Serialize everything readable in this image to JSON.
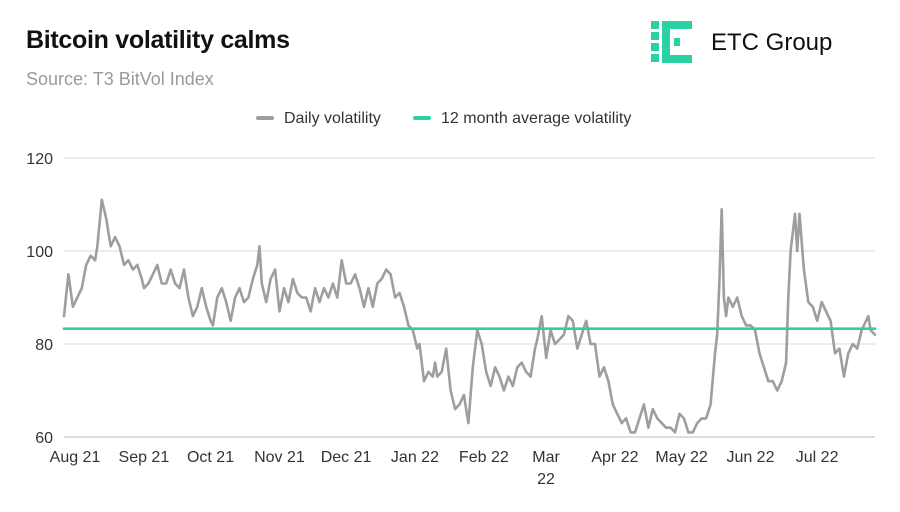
{
  "header": {
    "title": "Bitcoin volatility calms",
    "subtitle": "Source: T3 BitVol Index"
  },
  "logo": {
    "text": "ETC Group",
    "color": "#2ad1a3"
  },
  "chart_data": {
    "type": "line",
    "title": "Bitcoin volatility calms",
    "subtitle": "Source: T3 BitVol Index",
    "xlabel": "",
    "ylabel": "",
    "ylim": [
      60,
      120
    ],
    "yticks": [
      60,
      80,
      100,
      120
    ],
    "grid": true,
    "legend_position": "top-center",
    "x_tick_labels": [
      {
        "date": "2021-08-01",
        "label": "Aug 21"
      },
      {
        "date": "2021-09-01",
        "label": "Sep 21"
      },
      {
        "date": "2021-10-01",
        "label": "Oct 21"
      },
      {
        "date": "2021-11-01",
        "label": "Nov 21"
      },
      {
        "date": "2021-12-01",
        "label": "Dec 21"
      },
      {
        "date": "2022-01-01",
        "label": "Jan 22"
      },
      {
        "date": "2022-02-01",
        "label": "Feb 22"
      },
      {
        "date": "2022-03-01",
        "label": "Mar 22"
      },
      {
        "date": "2022-04-01",
        "label": "Apr 22"
      },
      {
        "date": "2022-05-01",
        "label": "May 22"
      },
      {
        "date": "2022-06-01",
        "label": "Jun 22"
      },
      {
        "date": "2022-07-01",
        "label": "Jul 22"
      }
    ],
    "series": [
      {
        "name": "Daily volatility",
        "color": "#9e9e9e",
        "points": [
          [
            "2021-08-01",
            86
          ],
          [
            "2021-08-03",
            95
          ],
          [
            "2021-08-05",
            88
          ],
          [
            "2021-08-07",
            90
          ],
          [
            "2021-08-09",
            92
          ],
          [
            "2021-08-11",
            97
          ],
          [
            "2021-08-13",
            99
          ],
          [
            "2021-08-15",
            98
          ],
          [
            "2021-08-16",
            101
          ],
          [
            "2021-08-18",
            111
          ],
          [
            "2021-08-20",
            107
          ],
          [
            "2021-08-22",
            101
          ],
          [
            "2021-08-24",
            103
          ],
          [
            "2021-08-26",
            101
          ],
          [
            "2021-08-28",
            97
          ],
          [
            "2021-08-30",
            98
          ],
          [
            "2021-09-01",
            96
          ],
          [
            "2021-09-03",
            97
          ],
          [
            "2021-09-05",
            94
          ],
          [
            "2021-09-06",
            92
          ],
          [
            "2021-09-08",
            93
          ],
          [
            "2021-09-10",
            95
          ],
          [
            "2021-09-12",
            97
          ],
          [
            "2021-09-14",
            93
          ],
          [
            "2021-09-16",
            93
          ],
          [
            "2021-09-18",
            96
          ],
          [
            "2021-09-20",
            93
          ],
          [
            "2021-09-22",
            92
          ],
          [
            "2021-09-24",
            96
          ],
          [
            "2021-09-26",
            90
          ],
          [
            "2021-09-28",
            86
          ],
          [
            "2021-09-30",
            88
          ],
          [
            "2021-10-02",
            92
          ],
          [
            "2021-10-04",
            88
          ],
          [
            "2021-10-06",
            85
          ],
          [
            "2021-10-07",
            84
          ],
          [
            "2021-10-09",
            90
          ],
          [
            "2021-10-11",
            92
          ],
          [
            "2021-10-13",
            89
          ],
          [
            "2021-10-15",
            85
          ],
          [
            "2021-10-17",
            90
          ],
          [
            "2021-10-19",
            92
          ],
          [
            "2021-10-21",
            89
          ],
          [
            "2021-10-23",
            90
          ],
          [
            "2021-10-25",
            94
          ],
          [
            "2021-10-27",
            97
          ],
          [
            "2021-10-28",
            101
          ],
          [
            "2021-10-29",
            93
          ],
          [
            "2021-10-31",
            89
          ],
          [
            "2021-11-02",
            94
          ],
          [
            "2021-11-04",
            96
          ],
          [
            "2021-11-06",
            87
          ],
          [
            "2021-11-08",
            92
          ],
          [
            "2021-11-10",
            89
          ],
          [
            "2021-11-12",
            94
          ],
          [
            "2021-11-14",
            91
          ],
          [
            "2021-11-16",
            90
          ],
          [
            "2021-11-18",
            90
          ],
          [
            "2021-11-20",
            87
          ],
          [
            "2021-11-22",
            92
          ],
          [
            "2021-11-24",
            89
          ],
          [
            "2021-11-26",
            92
          ],
          [
            "2021-11-28",
            90
          ],
          [
            "2021-11-30",
            93
          ],
          [
            "2021-12-02",
            90
          ],
          [
            "2021-12-04",
            98
          ],
          [
            "2021-12-06",
            93
          ],
          [
            "2021-12-08",
            93
          ],
          [
            "2021-12-10",
            95
          ],
          [
            "2021-12-12",
            92
          ],
          [
            "2021-12-14",
            88
          ],
          [
            "2021-12-16",
            92
          ],
          [
            "2021-12-18",
            88
          ],
          [
            "2021-12-20",
            93
          ],
          [
            "2021-12-22",
            94
          ],
          [
            "2021-12-24",
            96
          ],
          [
            "2021-12-26",
            95
          ],
          [
            "2021-12-28",
            90
          ],
          [
            "2021-12-30",
            91
          ],
          [
            "2022-01-01",
            88
          ],
          [
            "2022-01-03",
            84
          ],
          [
            "2022-01-05",
            83
          ],
          [
            "2022-01-07",
            79
          ],
          [
            "2022-01-08",
            80
          ],
          [
            "2022-01-10",
            72
          ],
          [
            "2022-01-12",
            74
          ],
          [
            "2022-01-14",
            73
          ],
          [
            "2022-01-15",
            76
          ],
          [
            "2022-01-16",
            73
          ],
          [
            "2022-01-18",
            74
          ],
          [
            "2022-01-20",
            79
          ],
          [
            "2022-01-22",
            70
          ],
          [
            "2022-01-24",
            66
          ],
          [
            "2022-01-26",
            67
          ],
          [
            "2022-01-28",
            69
          ],
          [
            "2022-01-30",
            63
          ],
          [
            "2022-02-01",
            75
          ],
          [
            "2022-02-03",
            83
          ],
          [
            "2022-02-05",
            80
          ],
          [
            "2022-02-07",
            74
          ],
          [
            "2022-02-09",
            71
          ],
          [
            "2022-02-11",
            75
          ],
          [
            "2022-02-13",
            73
          ],
          [
            "2022-02-15",
            70
          ],
          [
            "2022-02-17",
            73
          ],
          [
            "2022-02-19",
            71
          ],
          [
            "2022-02-21",
            75
          ],
          [
            "2022-02-23",
            76
          ],
          [
            "2022-02-25",
            74
          ],
          [
            "2022-02-27",
            73
          ],
          [
            "2022-03-01",
            79
          ],
          [
            "2022-03-02",
            81
          ],
          [
            "2022-03-04",
            86
          ],
          [
            "2022-03-06",
            77
          ],
          [
            "2022-03-08",
            83
          ],
          [
            "2022-03-10",
            80
          ],
          [
            "2022-03-12",
            81
          ],
          [
            "2022-03-14",
            82
          ],
          [
            "2022-03-16",
            86
          ],
          [
            "2022-03-18",
            85
          ],
          [
            "2022-03-20",
            79
          ],
          [
            "2022-03-22",
            82
          ],
          [
            "2022-03-24",
            85
          ],
          [
            "2022-03-26",
            80
          ],
          [
            "2022-03-28",
            80
          ],
          [
            "2022-03-30",
            73
          ],
          [
            "2022-04-01",
            75
          ],
          [
            "2022-04-03",
            72
          ],
          [
            "2022-04-05",
            67
          ],
          [
            "2022-04-07",
            65
          ],
          [
            "2022-04-09",
            63
          ],
          [
            "2022-04-11",
            64
          ],
          [
            "2022-04-13",
            61
          ],
          [
            "2022-04-15",
            61
          ],
          [
            "2022-04-17",
            64
          ],
          [
            "2022-04-19",
            67
          ],
          [
            "2022-04-21",
            62
          ],
          [
            "2022-04-23",
            66
          ],
          [
            "2022-04-25",
            64
          ],
          [
            "2022-04-27",
            63
          ],
          [
            "2022-04-29",
            62
          ],
          [
            "2022-05-01",
            62
          ],
          [
            "2022-05-03",
            61
          ],
          [
            "2022-05-05",
            65
          ],
          [
            "2022-05-07",
            64
          ],
          [
            "2022-05-09",
            61
          ],
          [
            "2022-05-11",
            61
          ],
          [
            "2022-05-13",
            63
          ],
          [
            "2022-05-15",
            64
          ],
          [
            "2022-05-17",
            64
          ],
          [
            "2022-05-19",
            67
          ],
          [
            "2022-05-21",
            78
          ],
          [
            "2022-05-22",
            82
          ],
          [
            "2022-05-23",
            94
          ],
          [
            "2022-05-24",
            109
          ],
          [
            "2022-05-25",
            90
          ],
          [
            "2022-05-26",
            86
          ],
          [
            "2022-05-27",
            90
          ],
          [
            "2022-05-29",
            88
          ],
          [
            "2022-05-31",
            90
          ],
          [
            "2022-06-02",
            86
          ],
          [
            "2022-06-04",
            84
          ],
          [
            "2022-06-06",
            84
          ],
          [
            "2022-06-08",
            83
          ],
          [
            "2022-06-10",
            78
          ],
          [
            "2022-06-12",
            75
          ],
          [
            "2022-06-14",
            72
          ],
          [
            "2022-06-16",
            72
          ],
          [
            "2022-06-18",
            70
          ],
          [
            "2022-06-20",
            72
          ],
          [
            "2022-06-22",
            76
          ],
          [
            "2022-06-23",
            90
          ],
          [
            "2022-06-24",
            100
          ],
          [
            "2022-06-26",
            108
          ],
          [
            "2022-06-27",
            100
          ],
          [
            "2022-06-28",
            108
          ],
          [
            "2022-06-30",
            96
          ],
          [
            "2022-07-02",
            89
          ],
          [
            "2022-07-04",
            88
          ],
          [
            "2022-07-06",
            85
          ],
          [
            "2022-07-08",
            89
          ],
          [
            "2022-07-10",
            87
          ],
          [
            "2022-07-12",
            85
          ],
          [
            "2022-07-14",
            78
          ],
          [
            "2022-07-16",
            79
          ],
          [
            "2022-07-18",
            73
          ],
          [
            "2022-07-20",
            78
          ],
          [
            "2022-07-22",
            80
          ],
          [
            "2022-07-24",
            79
          ],
          [
            "2022-07-26",
            83
          ],
          [
            "2022-07-28",
            85
          ],
          [
            "2022-07-29",
            86
          ],
          [
            "2022-07-30",
            83
          ],
          [
            "2022-08-01",
            82
          ]
        ]
      },
      {
        "name": "12 month average volatility",
        "color": "#2ad1a3",
        "points": [
          [
            "2021-08-01",
            83.3
          ],
          [
            "2022-08-01",
            83.3
          ]
        ]
      }
    ]
  }
}
